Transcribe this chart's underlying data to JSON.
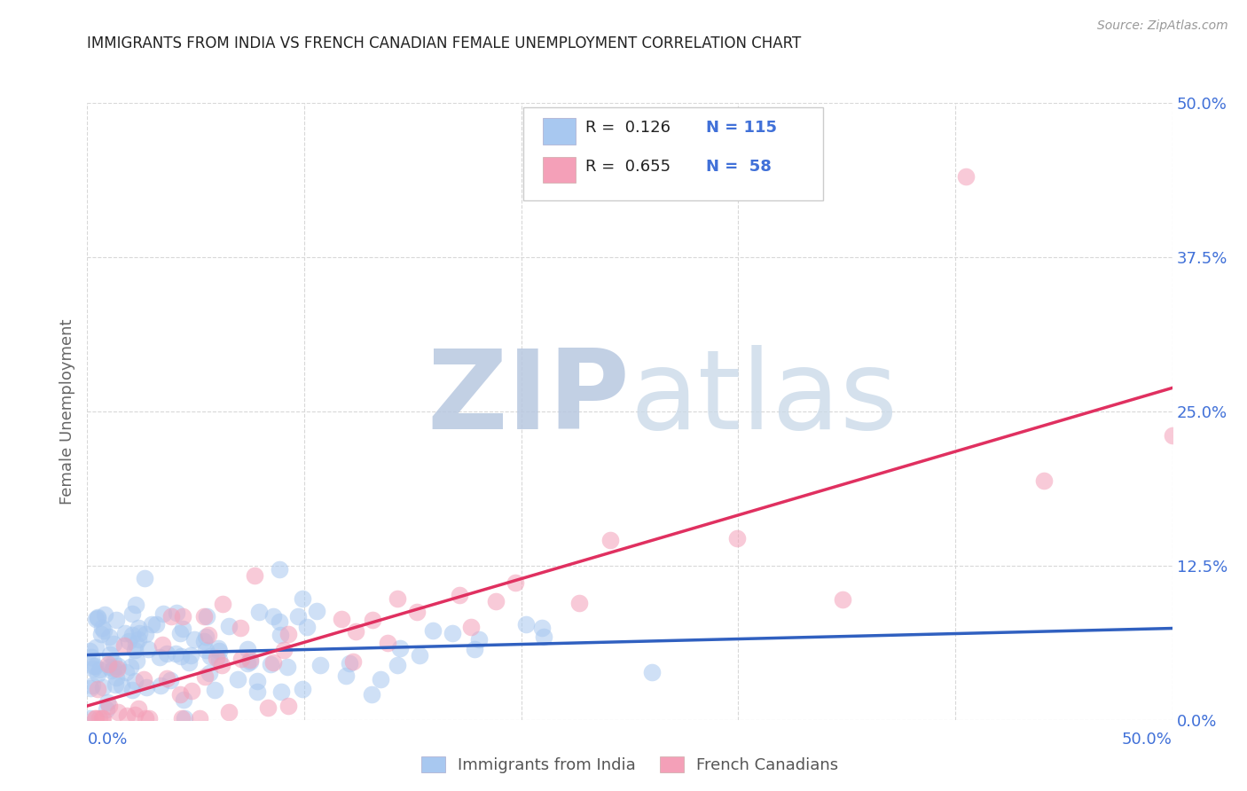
{
  "title": "IMMIGRANTS FROM INDIA VS FRENCH CANADIAN FEMALE UNEMPLOYMENT CORRELATION CHART",
  "source": "Source: ZipAtlas.com",
  "ylabel": "Female Unemployment",
  "ytick_labels": [
    "0.0%",
    "12.5%",
    "25.0%",
    "37.5%",
    "50.0%"
  ],
  "ytick_values": [
    0.0,
    0.125,
    0.25,
    0.375,
    0.5
  ],
  "xtick_values": [
    0.0,
    0.1,
    0.2,
    0.3,
    0.4,
    0.5
  ],
  "legend_label1": "Immigrants from India",
  "legend_label2": "French Canadians",
  "R1": 0.126,
  "N1": 115,
  "R2": 0.655,
  "N2": 58,
  "color_blue": "#a8c8f0",
  "color_pink": "#f4a0b8",
  "color_blue_line": "#3060c0",
  "color_pink_line": "#e03060",
  "color_blue_text": "#4070d8",
  "color_title": "#222222",
  "watermark_color": "#ccd8ee",
  "background_color": "#ffffff",
  "grid_color": "#d8d8d8",
  "xlim": [
    0.0,
    0.5
  ],
  "ylim": [
    0.0,
    0.5
  ]
}
